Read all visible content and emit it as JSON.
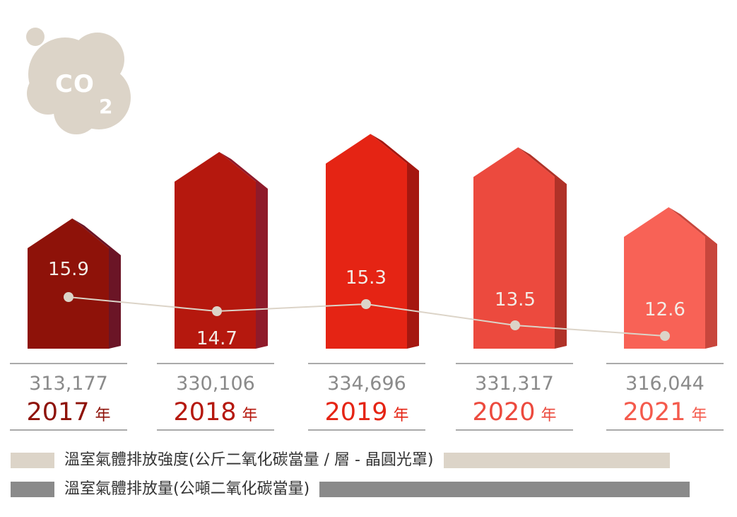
{
  "badge": {
    "text": "CO",
    "subscript": "2",
    "color": "#dcd4c8",
    "icon": "co2-cloud-icon"
  },
  "chart_data": {
    "type": "bar",
    "categories": [
      "2017",
      "2018",
      "2019",
      "2020",
      "2021"
    ],
    "year_suffix": "年",
    "series": [
      {
        "name": "溫室氣體排放量(公噸二氧化碳當量)",
        "values": [
          313177,
          330106,
          334696,
          331317,
          316044
        ],
        "labels": [
          "313,177",
          "330,106",
          "334,696",
          "331,317",
          "316,044"
        ],
        "color": "#8a8a8a"
      },
      {
        "name": "溫室氣體排放強度(公斤二氧化碳當量 / 層 - 晶圓光罩)",
        "values": [
          15.9,
          14.7,
          15.3,
          13.5,
          12.6
        ],
        "labels": [
          "15.9",
          "14.7",
          "15.3",
          "13.5",
          "12.6"
        ],
        "color": "#dcd4c8"
      }
    ],
    "bar_colors": [
      "#8e1209",
      "#b5180e",
      "#e52414",
      "#ec4a3e",
      "#f86256"
    ],
    "bar_side_colors": [
      "#6b1526",
      "#8f1a2a",
      "#a51710",
      "#b03228",
      "#c8463c"
    ],
    "year_colors": [
      "#8e1209",
      "#b5180e",
      "#e52414",
      "#ec4a3e",
      "#f45a4c"
    ]
  },
  "legend": [
    {
      "label": "溫室氣體排放強度(公斤二氧化碳當量 / 層 - 晶圓光罩)",
      "color": "#dcd4c8"
    },
    {
      "label": "溫室氣體排放量(公噸二氧化碳當量)",
      "color": "#8a8a8a"
    }
  ]
}
